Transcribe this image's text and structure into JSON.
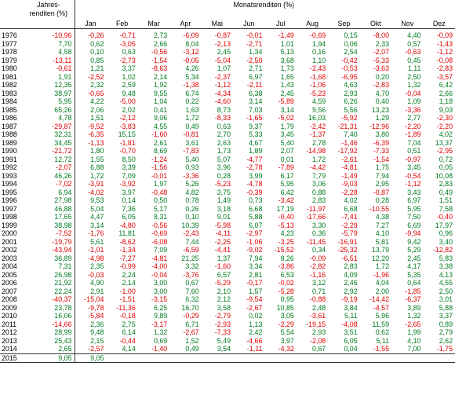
{
  "header": {
    "annual_label": "Jahres-\nrenditen (%)",
    "monthly_label": "Monatsrenditen (%)",
    "months": [
      "Jan",
      "Feb",
      "Mar",
      "Apr",
      "Mai",
      "Jun",
      "Jul",
      "Aug",
      "Sep",
      "Okt",
      "Nov",
      "Dez"
    ]
  },
  "colors": {
    "negative": "#e00000",
    "positive": "#007a1f",
    "text": "#000000"
  },
  "rows": [
    {
      "year": "1976",
      "annual": "-10,96",
      "months": [
        "-0,26",
        "-0,71",
        "2,73",
        "-6,09",
        "-0,87",
        "-0,01",
        "-1,49",
        "-0,69",
        "0,15",
        "-8,00",
        "4,40",
        "-0,09"
      ]
    },
    {
      "year": "1977",
      "annual": "7,70",
      "months": [
        "0,62",
        "-3,05",
        "2,66",
        "8,04",
        "-2,13",
        "-2,71",
        "1,01",
        "1,94",
        "0,06",
        "2,33",
        "0,57",
        "-1,43"
      ]
    },
    {
      "year": "1978",
      "annual": "4,58",
      "months": [
        "0,10",
        "0,63",
        "-0,56",
        "-3,12",
        "2,45",
        "1,34",
        "5,13",
        "0,16",
        "2,54",
        "-2,07",
        "-0,63",
        "-1,12"
      ]
    },
    {
      "year": "1979",
      "annual": "-13,11",
      "months": [
        "0,85",
        "-2,73",
        "-1,54",
        "-0,05",
        "-5,04",
        "-2,50",
        "3,68",
        "1,10",
        "-0,42",
        "-5,33",
        "0,45",
        "-0,08"
      ]
    },
    {
      "year": "1980",
      "annual": "-0,61",
      "months": [
        "1,21",
        "3,37",
        "-8,63",
        "4,26",
        "1,07",
        "2,71",
        "1,73",
        "-2,43",
        "-0,53",
        "-3,63",
        "1,11",
        "-2,83"
      ]
    },
    {
      "year": "1981",
      "annual": "1,91",
      "months": [
        "-2,52",
        "1,02",
        "2,14",
        "5,34",
        "-2,37",
        "6,97",
        "1,65",
        "-1,68",
        "-6,95",
        "0,20",
        "2,50",
        "-3,57"
      ]
    },
    {
      "year": "1982",
      "annual": "12,35",
      "months": [
        "2,32",
        "2,59",
        "1,92",
        "-1,38",
        "-1,12",
        "-2,11",
        "1,43",
        "-1,06",
        "4,63",
        "-2,83",
        "1,32",
        "6,42"
      ]
    },
    {
      "year": "1983",
      "annual": "38,97",
      "months": [
        "-0,65",
        "9,48",
        "9,55",
        "6,74",
        "-4,34",
        "6,38",
        "2,45",
        "-5,23",
        "2,93",
        "4,70",
        "-0,04",
        "2,66"
      ]
    },
    {
      "year": "1984",
      "annual": "5,95",
      "months": [
        "4,22",
        "-5,00",
        "1,04",
        "0,22",
        "-4,60",
        "3,14",
        "-5,89",
        "4,59",
        "6,26",
        "0,40",
        "1,09",
        "1,18"
      ]
    },
    {
      "year": "1985",
      "annual": "65,26",
      "months": [
        "2,06",
        "2,02",
        "0,41",
        "1,63",
        "8,73",
        "7,03",
        "3,14",
        "9,56",
        "5,56",
        "13,23",
        "-3,36",
        "9,03"
      ]
    },
    {
      "year": "1986",
      "annual": "4,78",
      "months": [
        "1,51",
        "-2,12",
        "9,06",
        "1,72",
        "-8,33",
        "-1,65",
        "-5,02",
        "16,03",
        "-5,92",
        "1,29",
        "2,77",
        "-2,30"
      ]
    },
    {
      "year": "1987",
      "annual": "-29,87",
      "months": [
        "-9,52",
        "-3,83",
        "4,55",
        "0,49",
        "0,63",
        "9,37",
        "1,79",
        "-2,42",
        "-21,31",
        "-12,96",
        "-2,20",
        "-2,20"
      ]
    },
    {
      "year": "1988",
      "annual": "32,31",
      "months": [
        "-6,35",
        "15,15",
        "-1,60",
        "-0,81",
        "2,70",
        "5,33",
        "3,45",
        "-1,37",
        "7,40",
        "3,80",
        "-1,89",
        "4,02"
      ]
    },
    {
      "year": "1989",
      "annual": "34,45",
      "months": [
        "-1,13",
        "-1,81",
        "2,61",
        "3,61",
        "2,63",
        "4,67",
        "5,40",
        "2,78",
        "-1,46",
        "-6,39",
        "7,04",
        "13,37"
      ]
    },
    {
      "year": "1990",
      "annual": "-21,72",
      "months": [
        "1,80",
        "-0,70",
        "8,69",
        "-7,83",
        "1,73",
        "1,89",
        "2,07",
        "-14,98",
        "-17,92",
        "-7,33",
        "0,51",
        "-2,95"
      ]
    },
    {
      "year": "1991",
      "annual": "12,72",
      "months": [
        "1,55",
        "8,50",
        "-1,24",
        "5,40",
        "5,07",
        "-4,77",
        "0,01",
        "1,72",
        "-2,61",
        "-1,54",
        "-0,97",
        "0,72"
      ]
    },
    {
      "year": "1992",
      "annual": "-2,07",
      "months": [
        "6,88",
        "3,39",
        "-1,56",
        "0,93",
        "3,96",
        "-2,78",
        "-7,89",
        "-4,42",
        "-4,81",
        "1,75",
        "3,45",
        "0,05"
      ]
    },
    {
      "year": "1993",
      "annual": "46,26",
      "months": [
        "1,72",
        "7,09",
        "-0,01",
        "-3,36",
        "0,28",
        "3,99",
        "6,17",
        "7,79",
        "-1,49",
        "7,94",
        "-0,54",
        "10,08"
      ]
    },
    {
      "year": "1994",
      "annual": "-7,02",
      "months": [
        "-3,91",
        "-3,92",
        "1,97",
        "5,26",
        "-5,23",
        "-4,78",
        "5,95",
        "3,06",
        "-9,03",
        "2,95",
        "-1,12",
        "2,83"
      ]
    },
    {
      "year": "1995",
      "annual": "6,94",
      "months": [
        "-4,02",
        "3,97",
        "-0,48",
        "4,82",
        "3,75",
        "-0,39",
        "6,42",
        "0,88",
        "-2,28",
        "-0,87",
        "3,43",
        "0,49"
      ]
    },
    {
      "year": "1996",
      "annual": "27,98",
      "months": [
        "9,53",
        "0,14",
        "0,50",
        "0,78",
        "1,49",
        "0,73",
        "-3,42",
        "2,83",
        "4,02",
        "0,28",
        "6,97",
        "1,51"
      ]
    },
    {
      "year": "1997",
      "annual": "46,88",
      "months": [
        "5,04",
        "7,36",
        "5,17",
        "0,26",
        "3,18",
        "6,68",
        "17,19",
        "-11,97",
        "6,68",
        "-10,55",
        "5,95",
        "7,58"
      ]
    },
    {
      "year": "1998",
      "annual": "17,65",
      "months": [
        "4,47",
        "6,05",
        "8,31",
        "0,10",
        "9,01",
        "5,88",
        "-0,40",
        "-17,66",
        "-7,41",
        "4,38",
        "7,50",
        "-0,40"
      ]
    },
    {
      "year": "1999",
      "annual": "38,98",
      "months": [
        "3,14",
        "-4,80",
        "-0,56",
        "10,39",
        "-5,98",
        "6,07",
        "-5,13",
        "3,30",
        "-2,29",
        "7,27",
        "6,69",
        "17,97"
      ]
    },
    {
      "year": "2000",
      "annual": "-7,52",
      "months": [
        "-1,76",
        "11,81",
        "-0,69",
        "-2,43",
        "-4,11",
        "-2,97",
        "4,23",
        "0,36",
        "-5,79",
        "4,10",
        "-9,94",
        "0,96"
      ]
    },
    {
      "year": "2001",
      "annual": "-19,79",
      "months": [
        "5,61",
        "-8,62",
        "-6,08",
        "7,44",
        "-2,25",
        "-1,06",
        "-3,25",
        "-11,45",
        "-16,91",
        "5,81",
        "9,42",
        "3,40"
      ]
    },
    {
      "year": "2002",
      "annual": "-43,94",
      "months": [
        "-1,01",
        "-1,34",
        "7,09",
        "-6,59",
        "-4,41",
        "-9,02",
        "-15,52",
        "0,34",
        "-25,32",
        "13,79",
        "5,29",
        "-12,82"
      ]
    },
    {
      "year": "2003",
      "annual": "36,89",
      "months": [
        "-4,98",
        "-7,27",
        "-4,81",
        "21,25",
        "1,37",
        "7,94",
        "8,26",
        "-0,09",
        "-6,51",
        "12,20",
        "2,45",
        "5,83"
      ]
    },
    {
      "year": "2004",
      "annual": "7,31",
      "months": [
        "2,35",
        "-0,99",
        "-4,00",
        "3,32",
        "-1,60",
        "3,34",
        "-3,86",
        "-2,82",
        "2,83",
        "1,72",
        "4,17",
        "3,38"
      ]
    },
    {
      "year": "2005",
      "annual": "26,98",
      "months": [
        "-0,03",
        "2,24",
        "-0,04",
        "-3,76",
        "6,57",
        "2,81",
        "6,53",
        "-1,16",
        "4,09",
        "-1,96",
        "5,35",
        "4,13"
      ]
    },
    {
      "year": "2006",
      "annual": "21,92",
      "months": [
        "4,90",
        "2,14",
        "3,00",
        "0,67",
        "-5,29",
        "-0,17",
        "-0,02",
        "3,12",
        "2,46",
        "4,04",
        "0,64",
        "4,55"
      ]
    },
    {
      "year": "2007",
      "annual": "22,24",
      "months": [
        "2,91",
        "-1,00",
        "3,00",
        "7,60",
        "2,10",
        "1,57",
        "-5,28",
        "0,71",
        "2,92",
        "2,00",
        "-1,85",
        "2,50"
      ]
    },
    {
      "year": "2008",
      "annual": "-40,37",
      "months": [
        "-15,04",
        "-1,51",
        "-3,15",
        "6,32",
        "2,12",
        "-9,54",
        "0,95",
        "-0,88",
        "-9,19",
        "-14,42",
        "-6,37",
        "3,01"
      ]
    },
    {
      "year": "2009",
      "annual": "23,78",
      "months": [
        "-9,78",
        "-11,36",
        "6,25",
        "16,70",
        "3,58",
        "-2,67",
        "10,85",
        "2,48",
        "3,84",
        "-4,57",
        "3,89",
        "5,88"
      ]
    },
    {
      "year": "2010",
      "annual": "16,06",
      "months": [
        "-5,84",
        "-0,18",
        "9,89",
        "-0,29",
        "-2,79",
        "0,02",
        "3,05",
        "-3,61",
        "5,11",
        "5,96",
        "1,32",
        "3,37"
      ]
    },
    {
      "year": "2011",
      "annual": "-14,66",
      "months": [
        "2,36",
        "2,75",
        "-3,17",
        "6,71",
        "-2,93",
        "1,13",
        "-2,29",
        "-19,15",
        "-4,08",
        "11,59",
        "-2,65",
        "0,89"
      ]
    },
    {
      "year": "2012",
      "annual": "28,99",
      "months": [
        "9,48",
        "6,14",
        "1,32",
        "-2,67",
        "-7,33",
        "2,42",
        "5,54",
        "2,93",
        "3,51",
        "0,62",
        "1,99",
        "2,79"
      ]
    },
    {
      "year": "2013",
      "annual": "25,43",
      "months": [
        "2,15",
        "-0,44",
        "0,69",
        "1,52",
        "5,49",
        "-4,66",
        "3,97",
        "-2,08",
        "6,05",
        "5,11",
        "4,10",
        "2,62"
      ]
    },
    {
      "year": "2014",
      "annual": "2,65",
      "months": [
        "-2,57",
        "4,14",
        "-1,40",
        "0,49",
        "3,54",
        "-1,11",
        "-4,32",
        "0,67",
        "0,04",
        "-1,55",
        "7,00",
        "-1,75"
      ]
    },
    {
      "year": "2015",
      "annual": "9,05",
      "months": [
        "9,05",
        "",
        "",
        "",
        "",
        "",
        "",
        "",
        "",
        "",
        "",
        ""
      ]
    }
  ]
}
